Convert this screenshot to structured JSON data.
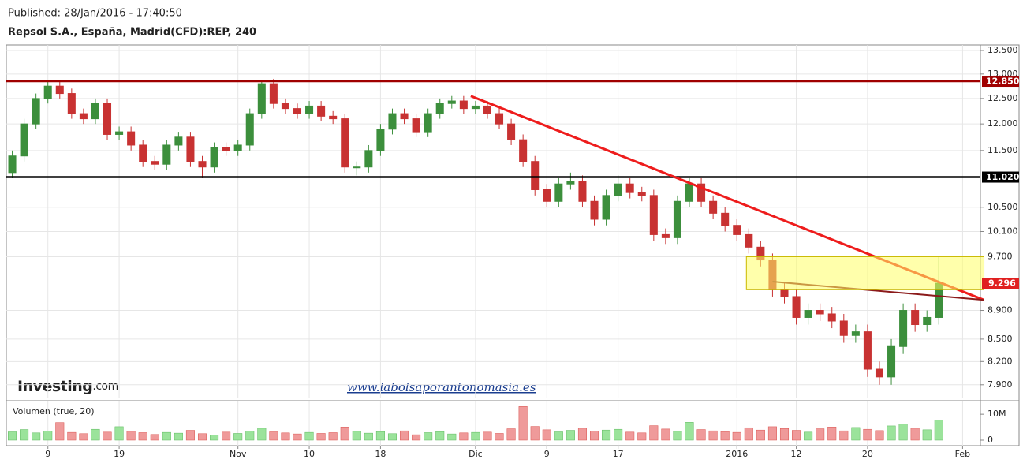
{
  "header": {
    "published": "Published: 28/Jan/2016 - 17:40:50",
    "instrument": "Repsol S.A., España, Madrid(CFD):REP, 240"
  },
  "chart_data": {
    "type": "candlestick",
    "volume_title": "Volumen (true, 20)",
    "logo": {
      "brand": "Investing",
      "suffix": ".com"
    },
    "watermark": "www.labolsaporantonomasia.es",
    "categories": [
      null,
      null,
      null,
      "9",
      null,
      null,
      null,
      null,
      null,
      "19",
      null,
      null,
      null,
      null,
      null,
      null,
      null,
      null,
      null,
      "Nov",
      null,
      null,
      null,
      null,
      null,
      "10",
      null,
      null,
      null,
      null,
      null,
      "18",
      null,
      null,
      null,
      null,
      null,
      null,
      null,
      "Dic",
      null,
      null,
      null,
      null,
      null,
      "9",
      null,
      null,
      null,
      null,
      null,
      "17",
      null,
      null,
      null,
      null,
      null,
      null,
      null,
      null,
      null,
      "2016",
      null,
      null,
      null,
      null,
      "12",
      null,
      null,
      null,
      null,
      null,
      "20",
      null,
      null,
      null,
      null,
      null,
      null,
      null,
      "Feb",
      null
    ],
    "open": [
      11.1,
      11.4,
      12.0,
      12.5,
      12.75,
      12.6,
      12.2,
      12.1,
      12.4,
      11.8,
      11.85,
      11.6,
      11.3,
      11.25,
      11.6,
      11.75,
      11.3,
      11.2,
      11.55,
      11.5,
      11.6,
      12.2,
      12.8,
      12.4,
      12.3,
      12.2,
      12.35,
      12.15,
      12.1,
      11.2,
      11.2,
      11.5,
      11.9,
      12.2,
      12.1,
      11.85,
      12.2,
      12.4,
      12.45,
      12.3,
      12.35,
      12.2,
      12.0,
      11.7,
      11.3,
      10.8,
      10.6,
      10.9,
      10.95,
      10.6,
      10.3,
      10.7,
      10.9,
      10.75,
      10.7,
      10.05,
      10.0,
      10.6,
      10.9,
      10.6,
      10.4,
      10.2,
      10.05,
      9.85,
      9.65,
      9.2,
      9.1,
      8.8,
      8.9,
      8.85,
      8.75,
      8.55,
      8.6,
      8.1,
      8.0,
      8.4,
      8.9,
      8.7,
      8.8,
      null,
      null,
      null
    ],
    "high": [
      11.5,
      12.1,
      12.6,
      12.85,
      12.85,
      12.7,
      12.3,
      12.5,
      12.5,
      11.95,
      11.95,
      11.7,
      11.4,
      11.7,
      11.85,
      11.85,
      11.4,
      11.65,
      11.65,
      11.7,
      12.3,
      12.85,
      12.9,
      12.5,
      12.4,
      12.45,
      12.45,
      12.25,
      12.2,
      11.3,
      11.6,
      12.0,
      12.3,
      12.3,
      12.2,
      12.3,
      12.5,
      12.55,
      12.55,
      12.45,
      12.45,
      12.3,
      12.1,
      11.8,
      11.4,
      10.9,
      11.0,
      11.1,
      11.05,
      10.7,
      10.8,
      11.05,
      11.0,
      10.85,
      10.8,
      10.15,
      10.7,
      11.0,
      11.0,
      10.7,
      10.5,
      10.3,
      10.15,
      9.95,
      9.75,
      9.3,
      9.2,
      9.0,
      9.0,
      8.95,
      8.85,
      8.7,
      8.7,
      8.2,
      8.5,
      9.0,
      9.0,
      8.9,
      9.7,
      null,
      null,
      null
    ],
    "low": [
      11.0,
      11.3,
      11.9,
      12.4,
      12.5,
      12.1,
      12.0,
      12.0,
      11.7,
      11.7,
      11.5,
      11.2,
      11.15,
      11.15,
      11.5,
      11.2,
      11.0,
      11.1,
      11.4,
      11.4,
      11.5,
      12.1,
      12.3,
      12.2,
      12.1,
      12.1,
      12.05,
      12.0,
      11.1,
      11.05,
      11.1,
      11.4,
      11.8,
      12.0,
      11.75,
      11.75,
      12.1,
      12.3,
      12.2,
      12.2,
      12.1,
      11.9,
      11.6,
      11.2,
      10.7,
      10.5,
      10.5,
      10.8,
      10.5,
      10.2,
      10.2,
      10.6,
      10.65,
      10.6,
      9.95,
      9.9,
      9.9,
      10.5,
      10.5,
      10.3,
      10.1,
      9.95,
      9.75,
      9.55,
      9.1,
      9.0,
      8.7,
      8.7,
      8.75,
      8.65,
      8.45,
      8.45,
      8.0,
      7.9,
      7.9,
      8.3,
      8.6,
      8.6,
      8.7,
      null,
      null,
      null
    ],
    "close": [
      11.4,
      12.0,
      12.5,
      12.75,
      12.6,
      12.2,
      12.1,
      12.4,
      11.8,
      11.85,
      11.6,
      11.3,
      11.25,
      11.6,
      11.75,
      11.3,
      11.2,
      11.55,
      11.5,
      11.6,
      12.2,
      12.8,
      12.4,
      12.3,
      12.2,
      12.35,
      12.15,
      12.1,
      11.2,
      11.2,
      11.5,
      11.9,
      12.2,
      12.1,
      11.85,
      12.2,
      12.4,
      12.45,
      12.3,
      12.35,
      12.2,
      12.0,
      11.7,
      11.3,
      10.8,
      10.6,
      10.9,
      10.95,
      10.6,
      10.3,
      10.7,
      10.9,
      10.75,
      10.7,
      10.05,
      10.0,
      10.6,
      10.9,
      10.6,
      10.4,
      10.2,
      10.05,
      9.85,
      9.65,
      9.2,
      9.1,
      8.8,
      8.9,
      8.85,
      8.75,
      8.55,
      8.6,
      8.1,
      8.0,
      8.4,
      8.9,
      8.7,
      8.8,
      9.296,
      null,
      null,
      null
    ],
    "volume": [
      3200000,
      4100000,
      2800000,
      3500000,
      6800000,
      3000000,
      2500000,
      4200000,
      3100000,
      5200000,
      3400000,
      2900000,
      2200000,
      3000000,
      2700000,
      3800000,
      2500000,
      2000000,
      3100000,
      2600000,
      3500000,
      4600000,
      3200000,
      2800000,
      2400000,
      3000000,
      2600000,
      2900000,
      5100000,
      3400000,
      2700000,
      3300000,
      2500000,
      3600000,
      2100000,
      2900000,
      3300000,
      2400000,
      2800000,
      3000000,
      3100000,
      2600000,
      4400000,
      13000000,
      5300000,
      4000000,
      3200000,
      3800000,
      4600000,
      3500000,
      3900000,
      4200000,
      3100000,
      2800000,
      5600000,
      4300000,
      3400000,
      6900000,
      4100000,
      3600000,
      3300000,
      3000000,
      4800000,
      3900000,
      5200000,
      4500000,
      3800000,
      3100000,
      4400000,
      5100000,
      3600000,
      4900000,
      4200000,
      3700000,
      5500000,
      6200000,
      4600000,
      4000000,
      7800000,
      null,
      null,
      null
    ],
    "up_color": "#3c8f3c",
    "down_color": "#c83232",
    "volume_up_color": "#9be39b",
    "volume_down_color": "#ef9a9a",
    "log_scale": true,
    "grid": true,
    "ylim": [
      7.73,
      13.62
    ],
    "yticks": [
      {
        "value": 13.5,
        "label": "13.500"
      },
      {
        "value": 13,
        "label": "13.000"
      },
      {
        "value": 12.5,
        "label": "12.500"
      },
      {
        "value": 12,
        "label": "12.000"
      },
      {
        "value": 11.5,
        "label": "11.500"
      },
      {
        "value": 10.5,
        "label": "10.500"
      },
      {
        "value": 10.1,
        "label": "10.100"
      },
      {
        "value": 9.7,
        "label": "9.700"
      },
      {
        "value": 8.9,
        "label": "8.900"
      },
      {
        "value": 8.5,
        "label": "8.500"
      },
      {
        "value": 8.2,
        "label": "8.200"
      },
      {
        "value": 7.9,
        "label": "7.900"
      }
    ],
    "volume_ylim": [
      0,
      14000000
    ],
    "volume_yticks": [
      {
        "value": 10000000,
        "label": "10M"
      },
      0
    ],
    "levels": [
      {
        "value": 12.85,
        "label": "12.850",
        "color": "#a00000"
      },
      {
        "value": 11.02,
        "label": "11.020",
        "color": "#000000"
      }
    ],
    "last_price": 9.296,
    "last_color": "#e02020",
    "trendlines": [
      {
        "x": [
          38.6,
          81.8
        ],
        "y": [
          12.55,
          9.05
        ],
        "color": "#ee1c1c"
      },
      {
        "x": [
          64,
          81.8
        ],
        "y": [
          9.32,
          9.05
        ],
        "color": "#8b1a1a"
      }
    ],
    "zone": {
      "x": [
        61.8,
        81.8
      ],
      "y": [
        9.7,
        9.2
      ],
      "color": "#ffff66"
    }
  }
}
